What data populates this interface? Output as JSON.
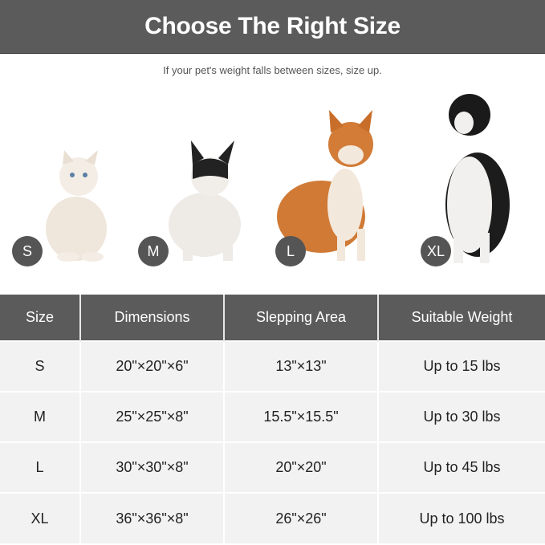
{
  "header": {
    "title": "Choose The Right Size"
  },
  "subtitle": "If your pet's weight falls between sizes, size up.",
  "pets": [
    {
      "size": "S",
      "animal": "cat"
    },
    {
      "size": "M",
      "animal": "french-bulldog"
    },
    {
      "size": "L",
      "animal": "shiba-inu"
    },
    {
      "size": "XL",
      "animal": "border-collie"
    }
  ],
  "table": {
    "headers": [
      "Size",
      "Dimensions",
      "Slepping Area",
      "Suitable Weight"
    ],
    "rows": [
      [
        "S",
        "20\"×20\"×6\"",
        "13\"×13\"",
        "Up to 15 lbs"
      ],
      [
        "M",
        "25\"×25\"×8\"",
        "15.5\"×15.5\"",
        "Up to 30 lbs"
      ],
      [
        "L",
        "30\"×30\"×8\"",
        "20\"×20\"",
        "Up to 45 lbs"
      ],
      [
        "XL",
        "36\"×36\"×8\"",
        "26\"×26\"",
        "Up to 100 lbs"
      ]
    ]
  },
  "colors": {
    "header_bg": "#5b5b5b",
    "row_bg": "#f2f2f2",
    "badge_bg": "#555555"
  }
}
